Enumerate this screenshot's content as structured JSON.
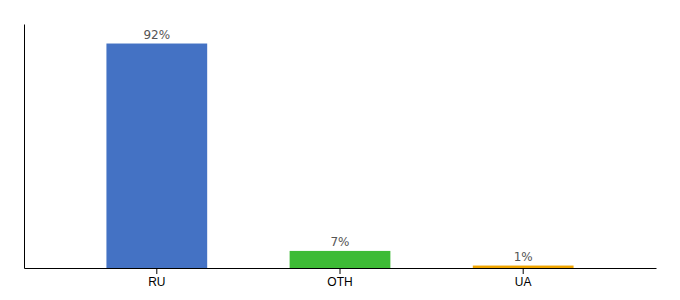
{
  "chart_data": {
    "type": "bar",
    "categories": [
      "RU",
      "OTH",
      "UA"
    ],
    "values": [
      92,
      7,
      1
    ],
    "value_labels": [
      "92%",
      "7%",
      "1%"
    ],
    "data_labels": true,
    "colors": [
      "#4472c4",
      "#3dbb35",
      "#f0a500"
    ],
    "ylim": [
      0,
      100
    ],
    "tick_labels": "x"
  }
}
